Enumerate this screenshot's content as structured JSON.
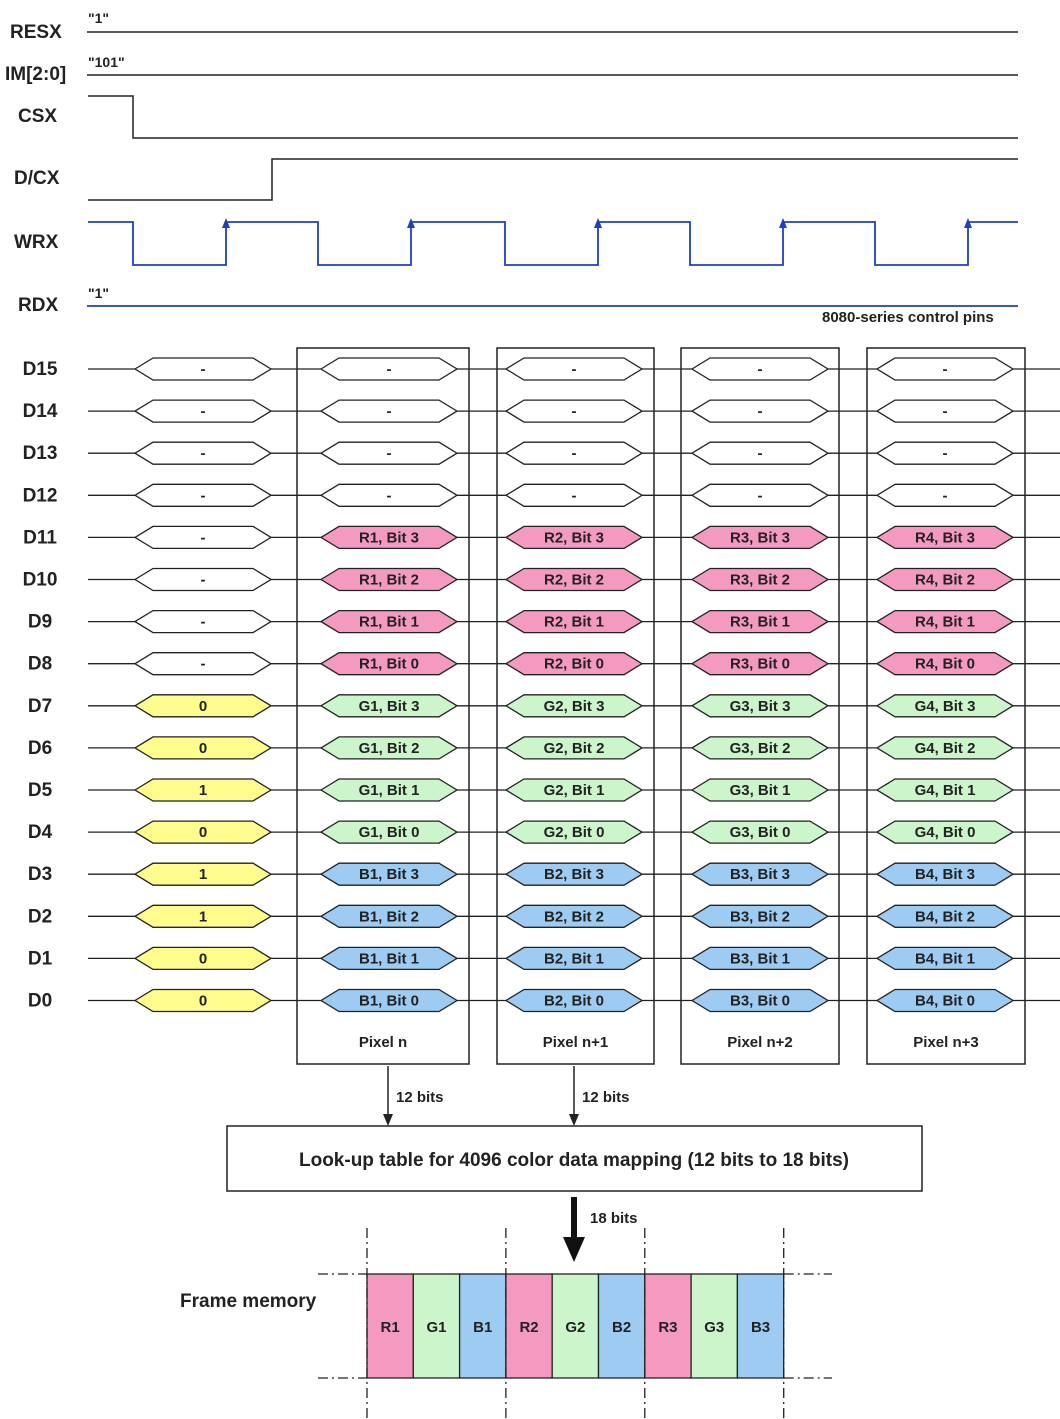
{
  "control_signals": [
    {
      "name": "RESX",
      "value": "\"1\""
    },
    {
      "name": "IM[2:0]",
      "value": "\"101\""
    },
    {
      "name": "CSX",
      "value": ""
    },
    {
      "name": "D/CX",
      "value": ""
    },
    {
      "name": "WRX",
      "value": ""
    },
    {
      "name": "RDX",
      "value": "\"1\""
    }
  ],
  "control_caption": "8080-series control pins",
  "data_pins": [
    "D15",
    "D14",
    "D13",
    "D12",
    "D11",
    "D10",
    "D9",
    "D8",
    "D7",
    "D6",
    "D5",
    "D4",
    "D3",
    "D2",
    "D1",
    "D0"
  ],
  "command_column": [
    "-",
    "-",
    "-",
    "-",
    "-",
    "-",
    "-",
    "-",
    "0",
    "0",
    "1",
    "0",
    "1",
    "1",
    "0",
    "0"
  ],
  "pixel_columns": [
    {
      "label": "Pixel n",
      "cells": [
        "-",
        "-",
        "-",
        "-",
        "R1, Bit 3",
        "R1, Bit 2",
        "R1, Bit 1",
        "R1, Bit 0",
        "G1, Bit 3",
        "G1, Bit 2",
        "G1, Bit 1",
        "G1, Bit 0",
        "B1, Bit 3",
        "B1, Bit 2",
        "B1, Bit 1",
        "B1, Bit 0"
      ]
    },
    {
      "label": "Pixel n+1",
      "cells": [
        "-",
        "-",
        "-",
        "-",
        "R2, Bit 3",
        "R2, Bit 2",
        "R2, Bit 1",
        "R2, Bit 0",
        "G2, Bit 3",
        "G2, Bit 2",
        "G2, Bit 1",
        "G2, Bit 0",
        "B2, Bit 3",
        "B2, Bit 2",
        "B2, Bit 1",
        "B2, Bit 0"
      ]
    },
    {
      "label": "Pixel n+2",
      "cells": [
        "-",
        "-",
        "-",
        "-",
        "R3, Bit 3",
        "R3, Bit 2",
        "R3, Bit 1",
        "R3, Bit 0",
        "G3, Bit 3",
        "G3, Bit 2",
        "G3, Bit 1",
        "G3, Bit 0",
        "B3, Bit 3",
        "B3, Bit 2",
        "B3, Bit 1",
        "B3, Bit 0"
      ]
    },
    {
      "label": "Pixel n+3",
      "cells": [
        "-",
        "-",
        "-",
        "-",
        "R4, Bit 3",
        "R4, Bit 2",
        "R4, Bit 1",
        "R4, Bit 0",
        "G4, Bit 3",
        "G4, Bit 2",
        "G4, Bit 1",
        "G4, Bit 0",
        "B4, Bit 3",
        "B4, Bit 2",
        "B4, Bit 1",
        "B4, Bit 0"
      ]
    }
  ],
  "arrows": {
    "left": "12 bits",
    "right": "12 bits",
    "down": "18 bits"
  },
  "lut_label": "Look-up table for 4096 color data mapping (12 bits to 18 bits)",
  "frame_memory": {
    "label": "Frame memory",
    "cells": [
      "R1",
      "G1",
      "B1",
      "R2",
      "G2",
      "B2",
      "R3",
      "G3",
      "B3"
    ]
  },
  "colors": {
    "red": "#f49ac1",
    "green": "#ccf5cc",
    "blue": "#9ecbf2",
    "yellow": "#fefc8c",
    "blank": "#ffffff",
    "wrx_line": "#1f3ec4",
    "outline": "#222222"
  }
}
